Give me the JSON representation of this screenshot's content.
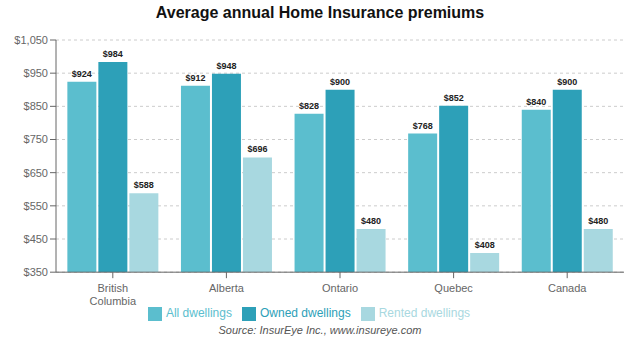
{
  "chart_data": {
    "type": "bar",
    "title": "Average annual Home Insurance premiums",
    "annotations": [
      "Source: InsurEye Inc., www.insureye.com"
    ],
    "categories": [
      "British\nColumbia",
      "Alberta",
      "Ontario",
      "Quebec",
      "Canada"
    ],
    "series": [
      {
        "name": "All dwellings",
        "color": "#5bbece",
        "values": [
          924,
          912,
          828,
          768,
          840
        ],
        "value_labels": [
          "$924",
          "$912",
          "$828",
          "$768",
          "$840"
        ]
      },
      {
        "name": "Owned dwellings",
        "color": "#2da0b8",
        "values": [
          984,
          948,
          900,
          852,
          900
        ],
        "value_labels": [
          "$984",
          "$948",
          "$900",
          "$852",
          "$900"
        ]
      },
      {
        "name": "Rented dwellings",
        "color": "#a8d8e0",
        "values": [
          588,
          696,
          480,
          408,
          480
        ],
        "value_labels": [
          "$588",
          "$696",
          "$480",
          "$408",
          "$480"
        ]
      }
    ],
    "ylim": [
      350,
      1050
    ],
    "yticks": [
      {
        "value": 350,
        "label": "$350"
      },
      {
        "value": 450,
        "label": "$450"
      },
      {
        "value": 550,
        "label": "$550"
      },
      {
        "value": 650,
        "label": "$650"
      },
      {
        "value": 750,
        "label": "$750"
      },
      {
        "value": 850,
        "label": "$850"
      },
      {
        "value": 950,
        "label": "$950"
      },
      {
        "value": 1050,
        "label": "$1,050"
      }
    ],
    "grid": true,
    "legend": "bottom",
    "data_labels": true
  }
}
